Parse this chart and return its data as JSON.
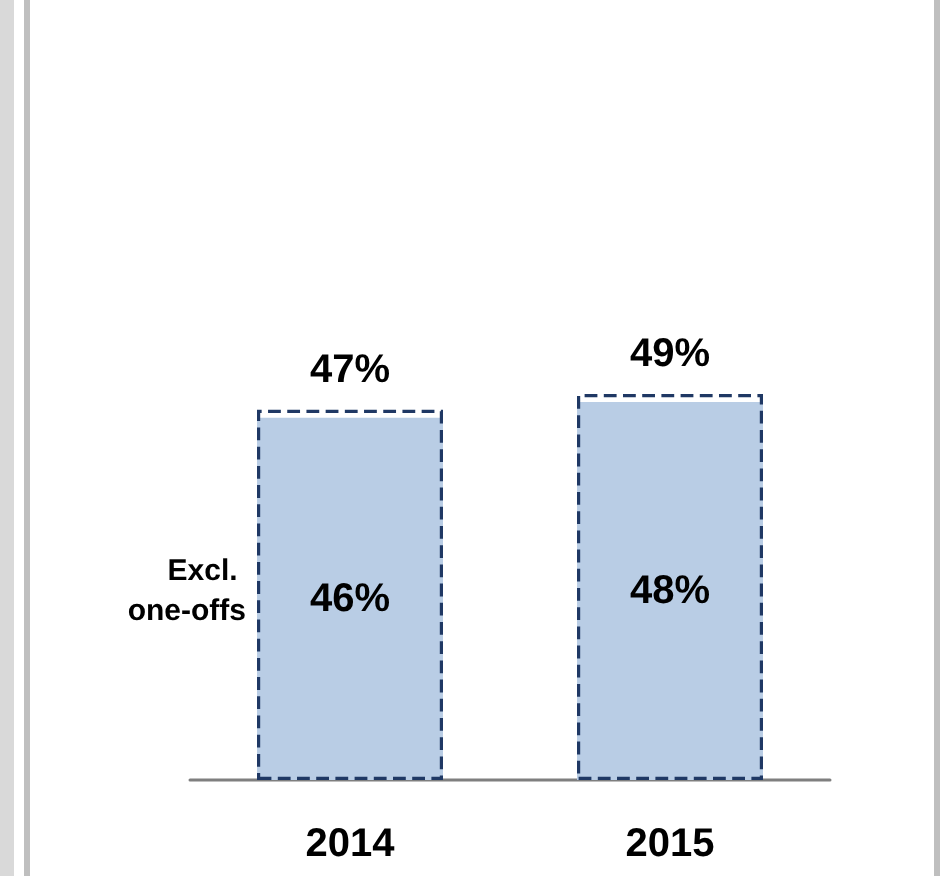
{
  "chart_data": {
    "type": "bar",
    "categories": [
      "2014",
      "2015"
    ],
    "series": [
      {
        "name": "Excl. one-offs",
        "color": "#b9cde5",
        "values": [
          46,
          48
        ],
        "value_labels": [
          "46%",
          "48%"
        ]
      },
      {
        "color": "#1f3864",
        "values": [
          47,
          49
        ],
        "value_labels": [
          "47%",
          "49%"
        ],
        "line_style": "dashed"
      }
    ],
    "legend": false,
    "grid": false
  }
}
